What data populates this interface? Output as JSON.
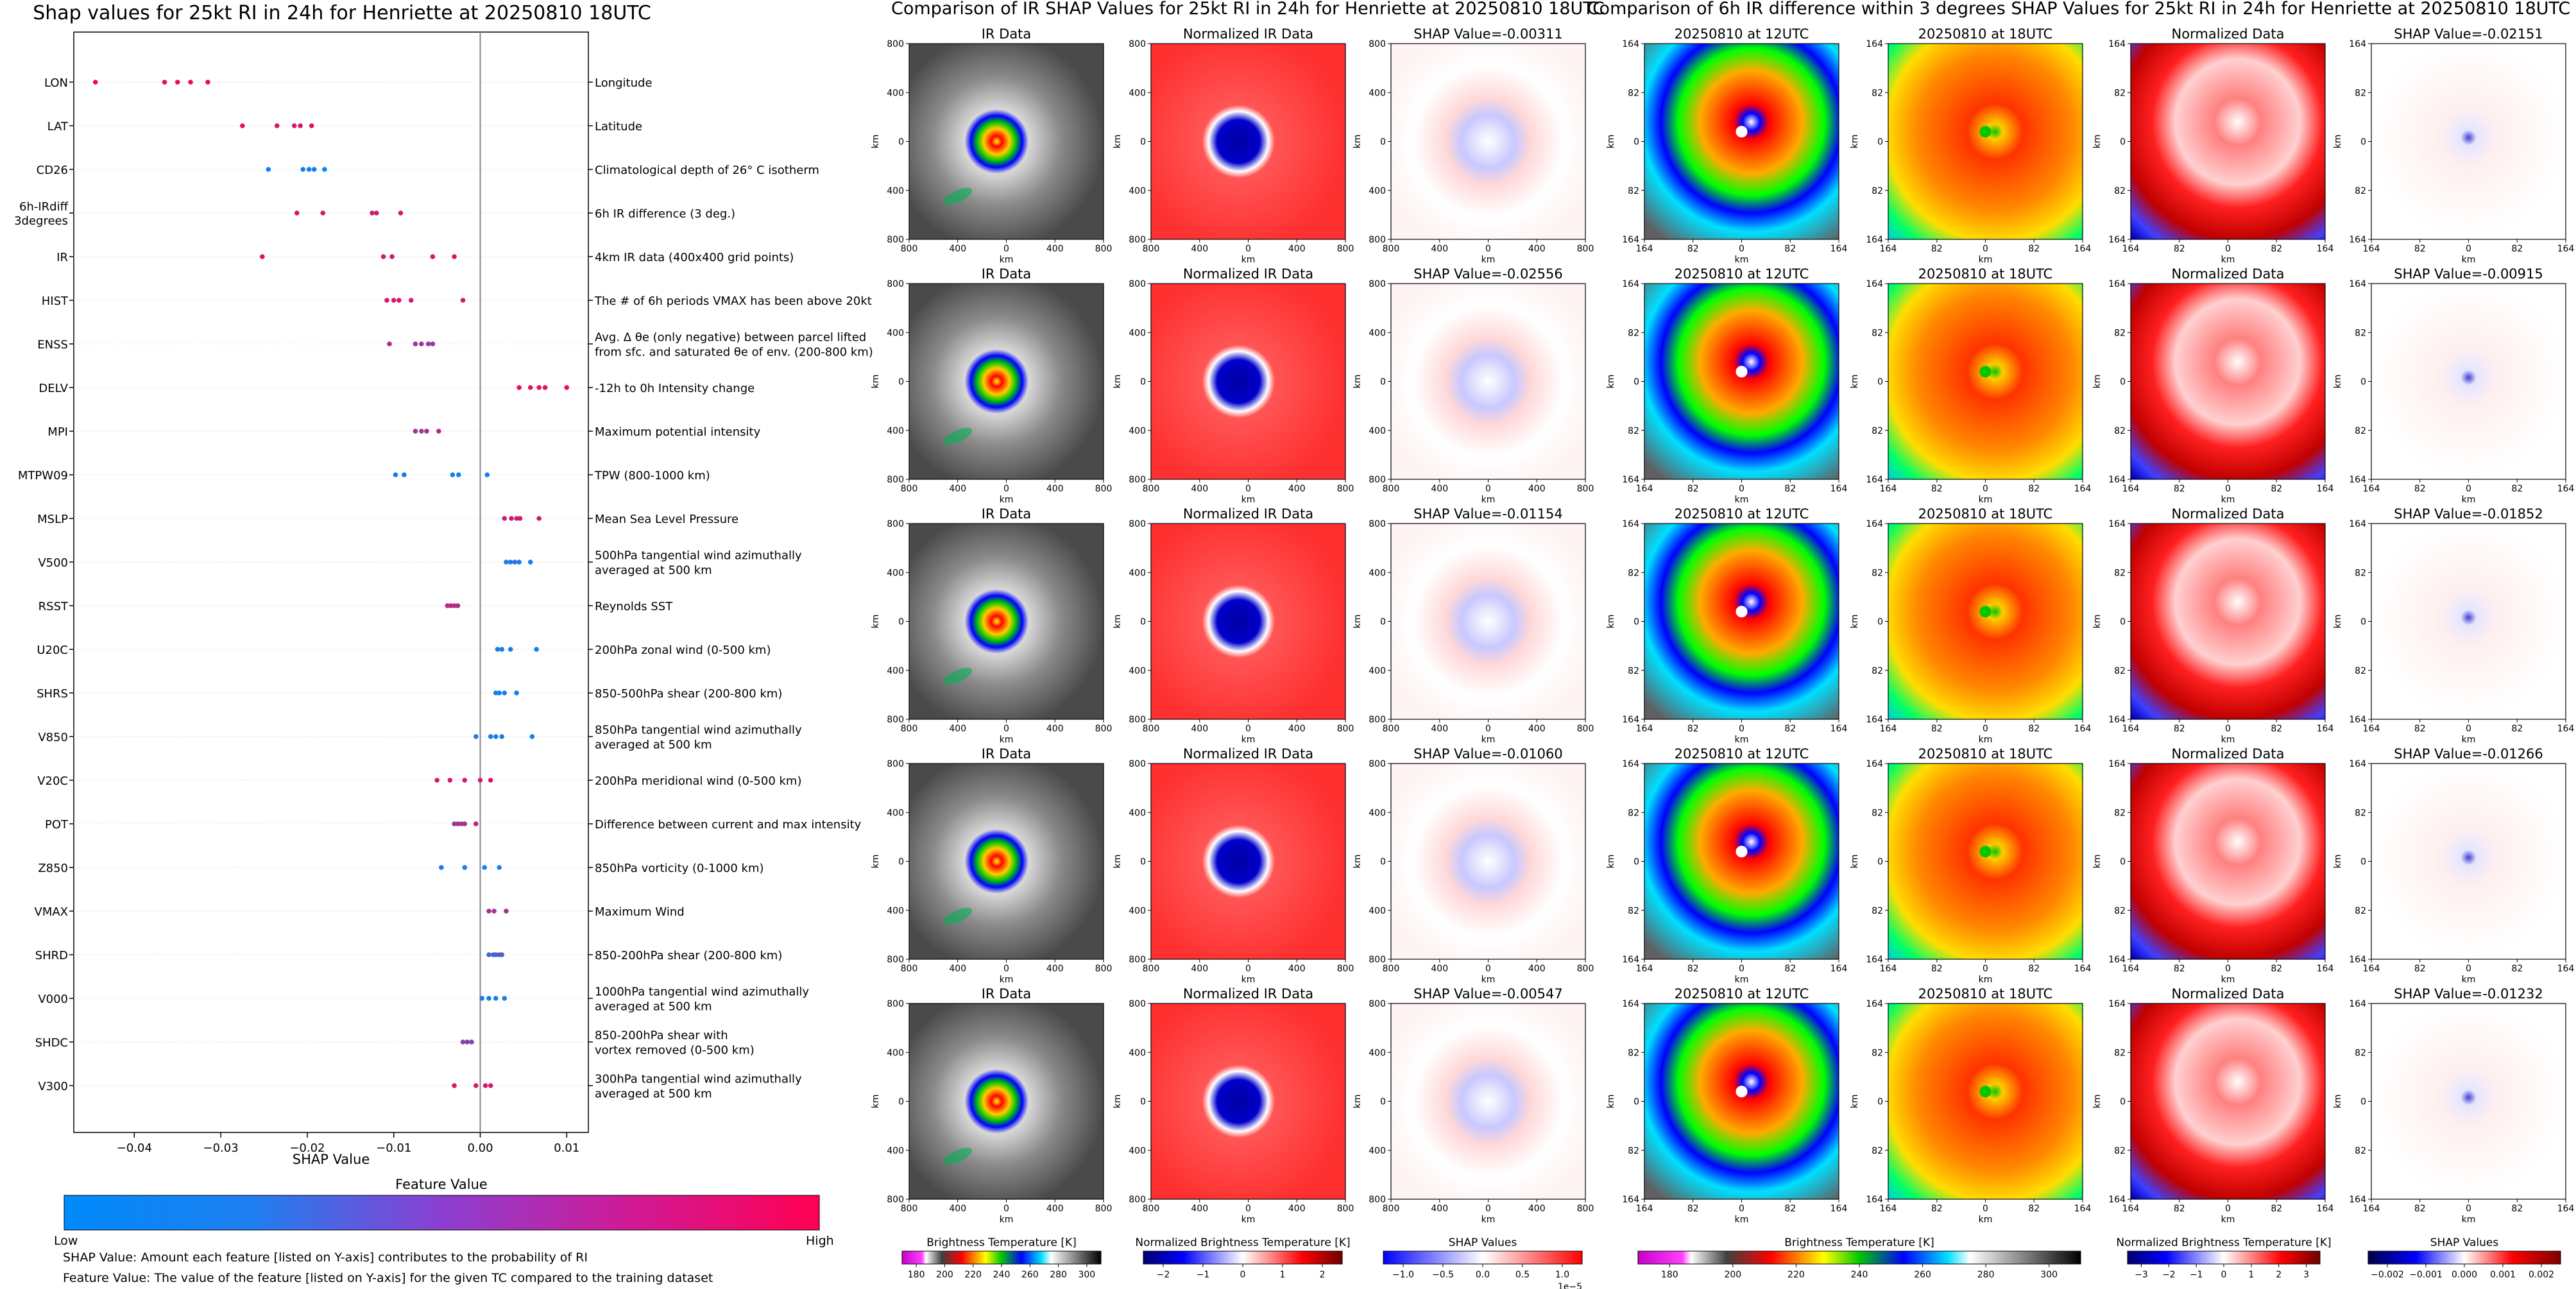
{
  "figures": {
    "shap_title": "Shap values for 25kt RI in 24h for Henriette at 20250810 18UTC",
    "ir_title": "Comparison of IR SHAP Values for 25kt RI in 24h for Henriette at 20250810 18UTC",
    "diff_title": "Comparison of 6h IR difference within 3 degrees SHAP Values for 25kt RI in 24h for Henriette at 20250810 18UTC"
  },
  "shap": {
    "feature_value_title": "Feature Value",
    "low_label": "Low",
    "high_label": "High",
    "note_shap": "SHAP Value: Amount each feature [listed on Y-axis] contributes to the probability of RI",
    "note_feature": "Feature Value: The value of the feature [listed on Y-axis] for the given TC compared to the training dataset"
  },
  "colorbars": {
    "ir_bt": {
      "label": "Brightness Temperature [K]",
      "ticks": [
        "180",
        "200",
        "220",
        "240",
        "260",
        "280",
        "300"
      ]
    },
    "ir_norm": {
      "label": "Normalized Brightness Temperature [K]",
      "ticks": [
        "−2",
        "−1",
        "0",
        "1",
        "2"
      ]
    },
    "ir_shap": {
      "label": "SHAP Values",
      "ticks": [
        "−1.0",
        "−0.5",
        "0.0",
        "0.5",
        "1.0"
      ],
      "offset": "1e−5"
    },
    "diff_bt": {
      "label": "Brightness Temperature [K]",
      "ticks": [
        "180",
        "200",
        "220",
        "240",
        "260",
        "280",
        "300"
      ]
    },
    "diff_norm": {
      "label": "Normalized Brightness Temperature [K]",
      "ticks": [
        "−3",
        "−2",
        "−1",
        "0",
        "1",
        "2",
        "3"
      ]
    },
    "diff_shap": {
      "label": "SHAP Values",
      "ticks": [
        "−0.002",
        "−0.001",
        "0.000",
        "0.001",
        "0.002"
      ]
    }
  },
  "panels": {
    "km_label": "km",
    "ir_ticks": [
      "800",
      "400",
      "0",
      "400",
      "800"
    ],
    "diff_ticks": [
      "164",
      "82",
      "0",
      "82",
      "164"
    ],
    "ir_col_titles": [
      "IR Data",
      "Normalized IR Data"
    ],
    "ir_shap_titles": [
      "SHAP Value=-0.00311",
      "SHAP Value=-0.02556",
      "SHAP Value=-0.01154",
      "SHAP Value=-0.01060",
      "SHAP Value=-0.00547"
    ],
    "diff_col_titles": [
      "20250810 at 12UTC",
      "20250810 at 18UTC",
      "Normalized Data"
    ],
    "diff_shap_titles": [
      "SHAP Value=-0.02151",
      "SHAP Value=-0.00915",
      "SHAP Value=-0.01852",
      "SHAP Value=-0.01266",
      "SHAP Value=-0.01232"
    ]
  },
  "chart_data": [
    {
      "type": "scatter",
      "title": "Shap values for 25kt RI in 24h for Henriette at 20250810 18UTC",
      "xlabel": "SHAP Value",
      "ylabel": "",
      "xlim": [
        -0.047,
        0.0125
      ],
      "xticks": [
        -0.04,
        -0.03,
        -0.02,
        -0.01,
        0.0,
        0.01
      ],
      "xtick_labels": [
        "−0.04",
        "−0.03",
        "−0.02",
        "−0.01",
        "0.00",
        "0.01"
      ],
      "color_low": "#008afb",
      "color_high": "#ff0052",
      "features": [
        {
          "code": "LON",
          "desc": [
            "Longitude"
          ],
          "points": [
            [
              -0.0445,
              0.95
            ],
            [
              -0.0365,
              0.92
            ],
            [
              -0.035,
              0.9
            ],
            [
              -0.0335,
              0.93
            ],
            [
              -0.0315,
              0.91
            ]
          ]
        },
        {
          "code": "LAT",
          "desc": [
            "Latitude"
          ],
          "points": [
            [
              -0.0275,
              0.88
            ],
            [
              -0.0235,
              0.86
            ],
            [
              -0.0215,
              0.85
            ],
            [
              -0.0208,
              0.87
            ],
            [
              -0.0195,
              0.9
            ]
          ]
        },
        {
          "code": "CD26",
          "desc": [
            "Climatological depth of 26° C isotherm"
          ],
          "points": [
            [
              -0.0245,
              0.05
            ],
            [
              -0.0205,
              0.08
            ],
            [
              -0.0198,
              0.1
            ],
            [
              -0.0192,
              0.07
            ],
            [
              -0.018,
              0.02
            ]
          ]
        },
        {
          "code": "6h-IRdiff|3degrees",
          "desc": [
            "6h IR difference (3 deg.)"
          ],
          "points": [
            [
              -0.0212,
              0.86
            ],
            [
              -0.0182,
              0.84
            ],
            [
              -0.0125,
              0.78
            ],
            [
              -0.012,
              0.8
            ],
            [
              -0.0092,
              0.82
            ]
          ]
        },
        {
          "code": "IR",
          "desc": [
            "4km IR data (400x400 grid points)"
          ],
          "points": [
            [
              -0.0252,
              0.88
            ],
            [
              -0.0112,
              0.8
            ],
            [
              -0.0102,
              0.82
            ],
            [
              -0.0055,
              0.9
            ],
            [
              -0.003,
              0.86
            ]
          ]
        },
        {
          "code": "HIST",
          "desc": [
            "The # of 6h periods VMAX has been above 20kt"
          ],
          "points": [
            [
              -0.0108,
              0.84
            ],
            [
              -0.01,
              0.86
            ],
            [
              -0.0094,
              0.85
            ],
            [
              -0.008,
              0.82
            ],
            [
              -0.002,
              0.8
            ]
          ]
        },
        {
          "code": "ENSS",
          "desc": [
            "Avg. Δ θe (only negative) between parcel lifted",
            "from sfc. and saturated θe of env. (200-800 km)"
          ],
          "points": [
            [
              -0.0105,
              0.7
            ],
            [
              -0.0075,
              0.6
            ],
            [
              -0.0068,
              0.62
            ],
            [
              -0.006,
              0.55
            ],
            [
              -0.0055,
              0.58
            ]
          ]
        },
        {
          "code": "DELV",
          "desc": [
            "-12h to 0h Intensity change"
          ],
          "points": [
            [
              0.0045,
              0.9
            ],
            [
              0.0058,
              0.88
            ],
            [
              0.0068,
              0.92
            ],
            [
              0.0075,
              0.89
            ],
            [
              0.01,
              0.94
            ]
          ]
        },
        {
          "code": "MPI",
          "desc": [
            "Maximum potential intensity"
          ],
          "points": [
            [
              -0.0075,
              0.62
            ],
            [
              -0.0068,
              0.6
            ],
            [
              -0.0062,
              0.65
            ],
            [
              -0.0048,
              0.7
            ]
          ]
        },
        {
          "code": "MTPW09",
          "desc": [
            "TPW (800-1000 km)"
          ],
          "points": [
            [
              -0.0098,
              0.1
            ],
            [
              -0.0088,
              0.12
            ],
            [
              -0.0032,
              0.08
            ],
            [
              -0.0025,
              0.06
            ],
            [
              0.0008,
              0.05
            ]
          ]
        },
        {
          "code": "MSLP",
          "desc": [
            "Mean Sea Level Pressure"
          ],
          "points": [
            [
              0.0028,
              0.82
            ],
            [
              0.0036,
              0.8
            ],
            [
              0.0042,
              0.78
            ],
            [
              0.0046,
              0.82
            ],
            [
              0.0068,
              0.84
            ]
          ]
        },
        {
          "code": "V500",
          "desc": [
            "500hPa tangential wind azimuthally",
            "averaged at 500 km"
          ],
          "points": [
            [
              0.003,
              0.1
            ],
            [
              0.0035,
              0.12
            ],
            [
              0.004,
              0.15
            ],
            [
              0.0045,
              0.11
            ],
            [
              0.0058,
              0.08
            ]
          ]
        },
        {
          "code": "RSST",
          "desc": [
            "Reynolds SST"
          ],
          "points": [
            [
              -0.0038,
              0.7
            ],
            [
              -0.0034,
              0.72
            ],
            [
              -0.003,
              0.69
            ],
            [
              -0.0026,
              0.71
            ]
          ]
        },
        {
          "code": "U20C",
          "desc": [
            "200hPa zonal wind (0-500 km)"
          ],
          "points": [
            [
              0.002,
              0.08
            ],
            [
              0.0025,
              0.1
            ],
            [
              0.0035,
              0.12
            ],
            [
              0.0065,
              0.06
            ]
          ]
        },
        {
          "code": "SHRS",
          "desc": [
            "850-500hPa shear (200-800 km)"
          ],
          "points": [
            [
              0.0018,
              0.08
            ],
            [
              0.0022,
              0.07
            ],
            [
              0.0028,
              0.1
            ],
            [
              0.0042,
              0.09
            ]
          ]
        },
        {
          "code": "V850",
          "desc": [
            "850hPa tangential wind azimuthally",
            "averaged at 500 km"
          ],
          "points": [
            [
              -0.0005,
              0.15
            ],
            [
              0.0012,
              0.1
            ],
            [
              0.0018,
              0.12
            ],
            [
              0.0025,
              0.08
            ],
            [
              0.006,
              0.06
            ]
          ]
        },
        {
          "code": "V20C",
          "desc": [
            "200hPa meridional wind (0-500 km)"
          ],
          "points": [
            [
              -0.005,
              0.85
            ],
            [
              -0.0035,
              0.82
            ],
            [
              -0.0018,
              0.8
            ],
            [
              0.0,
              0.78
            ],
            [
              0.0012,
              0.9
            ]
          ]
        },
        {
          "code": "POT",
          "desc": [
            "Difference between current and max intensity"
          ],
          "points": [
            [
              -0.003,
              0.62
            ],
            [
              -0.0026,
              0.6
            ],
            [
              -0.0022,
              0.64
            ],
            [
              -0.0018,
              0.6
            ],
            [
              -0.0005,
              0.8
            ]
          ]
        },
        {
          "code": "Z850",
          "desc": [
            "850hPa vorticity (0-1000 km)"
          ],
          "points": [
            [
              -0.0045,
              0.1
            ],
            [
              -0.0018,
              0.12
            ],
            [
              0.0005,
              0.08
            ],
            [
              0.0022,
              0.06
            ]
          ]
        },
        {
          "code": "VMAX",
          "desc": [
            "Maximum Wind"
          ],
          "points": [
            [
              0.001,
              0.65
            ],
            [
              0.0016,
              0.62
            ],
            [
              0.003,
              0.64
            ]
          ]
        },
        {
          "code": "SHRD",
          "desc": [
            "850-200hPa shear (200-800 km)"
          ],
          "points": [
            [
              0.001,
              0.25
            ],
            [
              0.0015,
              0.3
            ],
            [
              0.0018,
              0.28
            ],
            [
              0.0022,
              0.32
            ],
            [
              0.0025,
              0.3
            ]
          ]
        },
        {
          "code": "V000",
          "desc": [
            "1000hPa tangential wind azimuthally",
            "averaged at 500 km"
          ],
          "points": [
            [
              0.0002,
              0.1
            ],
            [
              0.001,
              0.08
            ],
            [
              0.0018,
              0.12
            ],
            [
              0.0028,
              0.1
            ]
          ]
        },
        {
          "code": "SHDC",
          "desc": [
            "850-200hPa shear with",
            "vortex removed (0-500 km)"
          ],
          "points": [
            [
              -0.002,
              0.5
            ],
            [
              -0.0015,
              0.55
            ],
            [
              -0.001,
              0.45
            ]
          ]
        },
        {
          "code": "V300",
          "desc": [
            "300hPa tangential wind azimuthally",
            "averaged at 500 km"
          ],
          "points": [
            [
              -0.003,
              0.85
            ],
            [
              -0.0005,
              0.82
            ],
            [
              0.0006,
              0.84
            ],
            [
              0.0012,
              0.86
            ]
          ]
        }
      ]
    }
  ]
}
